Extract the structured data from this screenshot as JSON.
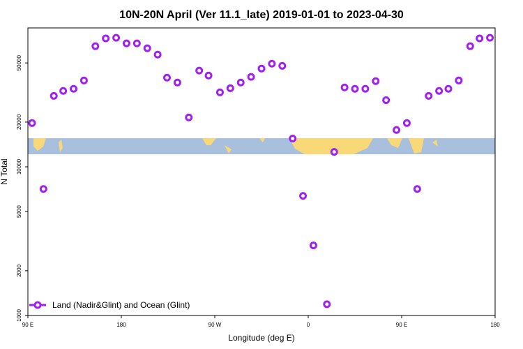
{
  "chart_data": {
    "type": "scatter",
    "title": "10N-20N April (Ver 11.1_late)   2019-01-01 to 2023-04-30",
    "x_label": "Longitude (deg E)",
    "y_label": "N Total",
    "log_y": true,
    "legend_position": "lower left",
    "xlim": [
      90,
      540
    ],
    "ylim": [
      1000,
      86000
    ],
    "xticks": [
      {
        "value": 90,
        "label": "90 E"
      },
      {
        "value": 180,
        "label": "180"
      },
      {
        "value": 270,
        "label": "90 W"
      },
      {
        "value": 360,
        "label": "0"
      },
      {
        "value": 450,
        "label": "90 E"
      },
      {
        "value": 540,
        "label": "180"
      }
    ],
    "yticks": [
      1000,
      2000,
      5000,
      10000,
      20000,
      50000
    ],
    "series": [
      {
        "name": "Land (Nadir&Glint) and Ocean (Glint)",
        "color": "#a020f0",
        "x": [
          94,
          105,
          115,
          124,
          134,
          144,
          155,
          165,
          175,
          185,
          195,
          205,
          215,
          224,
          234,
          245,
          255,
          264,
          275,
          285,
          295,
          305,
          315,
          325,
          335,
          345,
          355,
          365,
          378,
          385,
          395,
          405,
          415,
          425,
          435,
          445,
          455,
          465,
          476,
          486,
          495,
          505,
          516,
          525,
          535
        ],
        "values": [
          19700,
          7100,
          30000,
          32400,
          33500,
          38100,
          64800,
          73100,
          73800,
          67700,
          67700,
          62800,
          56900,
          39800,
          36900,
          21500,
          44400,
          41100,
          31700,
          33800,
          36900,
          40300,
          45800,
          49400,
          47800,
          15500,
          6380,
          2960,
          1190,
          12600,
          34200,
          33500,
          33500,
          37700,
          28100,
          17700,
          19700,
          7100,
          30000,
          32400,
          33500,
          38100,
          64800,
          73100,
          73800
        ]
      }
    ]
  }
}
